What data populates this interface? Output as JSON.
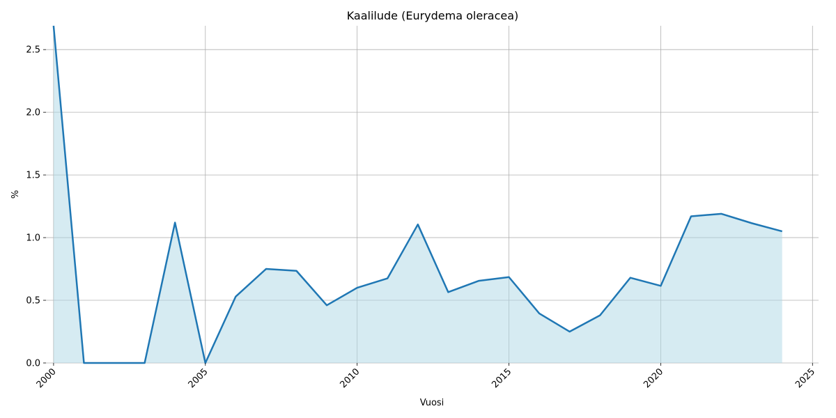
{
  "chart_data": {
    "type": "area",
    "title": "Kaalilude (Eurydema oleracea)",
    "xlabel": "Vuosi",
    "ylabel": "%",
    "xlim": [
      1999.75,
      2025.2
    ],
    "ylim": [
      0,
      2.69
    ],
    "xticks": [
      2000,
      2005,
      2010,
      2015,
      2020,
      2025
    ],
    "yticks": [
      0.0,
      0.5,
      1.0,
      1.5,
      2.0,
      2.5
    ],
    "xtick_labels": [
      "2000",
      "2005",
      "2010",
      "2015",
      "2020",
      "2025"
    ],
    "ytick_labels": [
      "0.0",
      "0.5",
      "1.0",
      "1.5",
      "2.0",
      "2.5"
    ],
    "grid": true,
    "x": [
      2000,
      2001,
      2002,
      2003,
      2004,
      2005,
      2006,
      2007,
      2008,
      2009,
      2010,
      2011,
      2012,
      2013,
      2014,
      2015,
      2016,
      2017,
      2018,
      2019,
      2020,
      2021,
      2022,
      2023,
      2024
    ],
    "series": [
      {
        "values": [
          2.69,
          0.0,
          0.0,
          0.0,
          1.12,
          0.0,
          0.53,
          0.75,
          0.735,
          0.46,
          0.6,
          0.675,
          1.105,
          0.565,
          0.655,
          0.685,
          0.395,
          0.25,
          0.38,
          0.68,
          0.615,
          1.17,
          1.19,
          1.115,
          1.05
        ],
        "color": "#1f77b4",
        "fill_color": "#add8e6"
      }
    ]
  }
}
